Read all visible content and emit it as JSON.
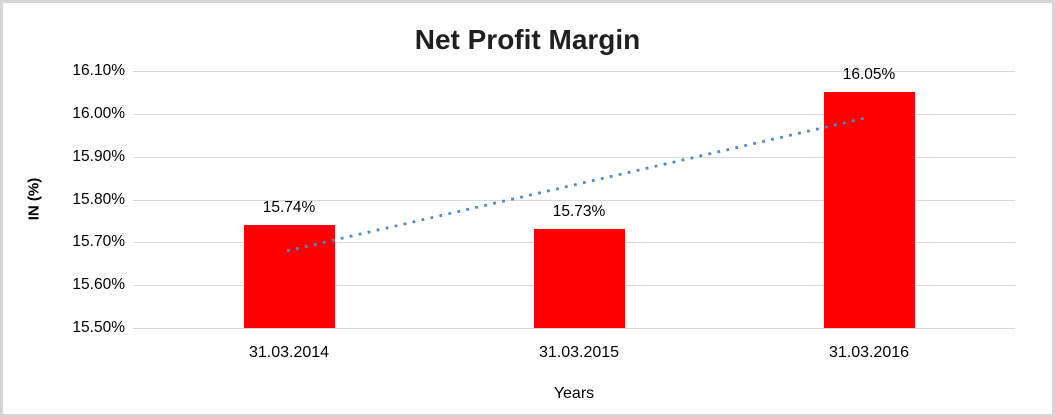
{
  "chart_data": {
    "type": "bar",
    "title": "Net Profit Margin",
    "xlabel": "Years",
    "ylabel": "IN (%)",
    "categories": [
      "31.03.2014",
      "31.03.2015",
      "31.03.2016"
    ],
    "values": [
      15.74,
      15.73,
      16.05
    ],
    "data_labels": [
      "15.74%",
      "15.73%",
      "16.05%"
    ],
    "ylim": [
      15.5,
      16.1
    ],
    "ytick_step": 0.1,
    "ytick_labels": [
      "15.50%",
      "15.60%",
      "15.70%",
      "15.80%",
      "15.90%",
      "16.00%",
      "16.10%"
    ],
    "grid": true,
    "legend": false,
    "bar_color": "#ff0000",
    "gridline_color": "#d9d9d9",
    "trendline": {
      "type": "linear",
      "style": "dotted",
      "color": "#4f87c9",
      "start_value": 15.68,
      "end_value": 15.99
    }
  }
}
